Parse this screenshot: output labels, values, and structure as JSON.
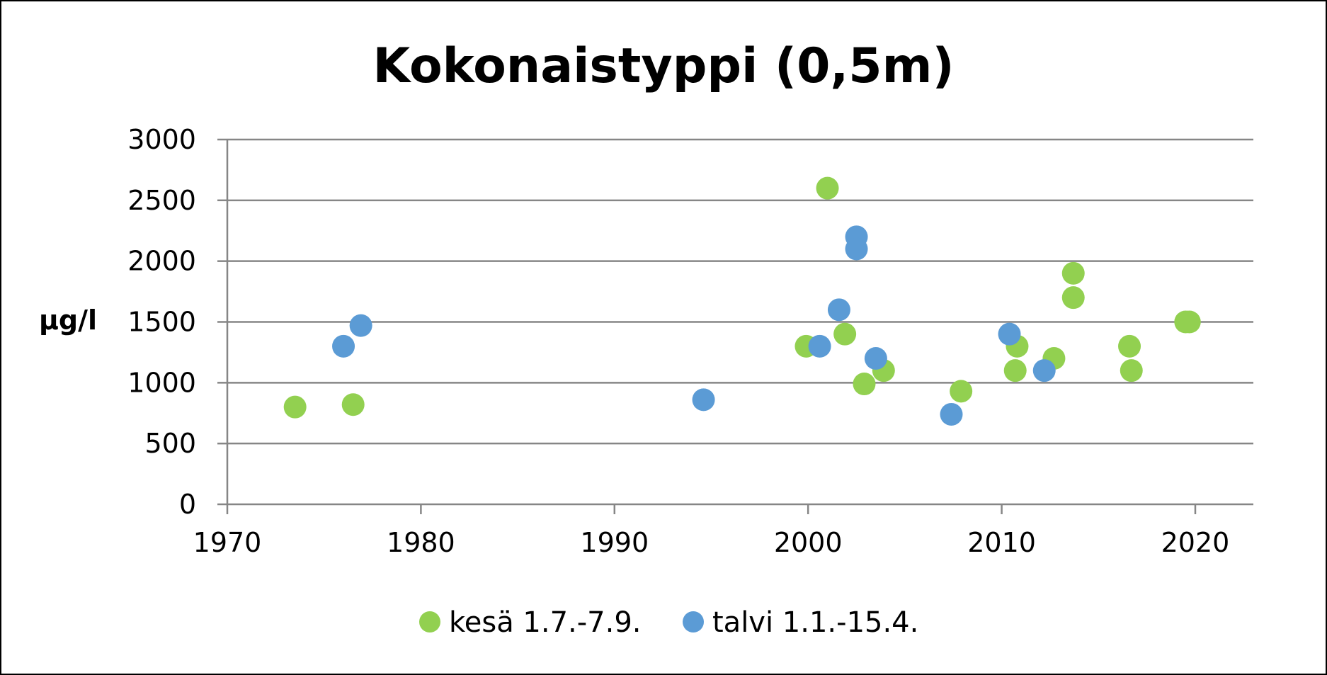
{
  "chart_data": {
    "type": "scatter",
    "title": "Kokonaistyppi (0,5m)",
    "xlabel": "",
    "ylabel": "µg/l",
    "xlim": [
      1970,
      2023
    ],
    "ylim": [
      0,
      3000
    ],
    "x_ticks": [
      1970,
      1980,
      1990,
      2000,
      2010,
      2020
    ],
    "y_ticks": [
      0,
      500,
      1000,
      1500,
      2000,
      2500,
      3000
    ],
    "grid": "horizontal",
    "legend_position": "bottom",
    "series": [
      {
        "name": "kesä 1.7.-7.9.",
        "color": "#92d050",
        "points": [
          {
            "x": 1973.5,
            "y": 800
          },
          {
            "x": 1976.5,
            "y": 820
          },
          {
            "x": 1999.9,
            "y": 1300
          },
          {
            "x": 2001.0,
            "y": 2600
          },
          {
            "x": 2001.9,
            "y": 1400
          },
          {
            "x": 2002.9,
            "y": 990
          },
          {
            "x": 2003.9,
            "y": 1100
          },
          {
            "x": 2007.9,
            "y": 930
          },
          {
            "x": 2010.8,
            "y": 1300
          },
          {
            "x": 2010.7,
            "y": 1100
          },
          {
            "x": 2012.7,
            "y": 1200
          },
          {
            "x": 2013.7,
            "y": 1900
          },
          {
            "x": 2013.7,
            "y": 1700
          },
          {
            "x": 2016.6,
            "y": 1300
          },
          {
            "x": 2016.7,
            "y": 1100
          },
          {
            "x": 2019.5,
            "y": 1500
          },
          {
            "x": 2019.7,
            "y": 1500
          }
        ]
      },
      {
        "name": "talvi 1.1.-15.4.",
        "color": "#5b9bd5",
        "points": [
          {
            "x": 1976.0,
            "y": 1300
          },
          {
            "x": 1976.9,
            "y": 1470
          },
          {
            "x": 1994.6,
            "y": 860
          },
          {
            "x": 2000.6,
            "y": 1300
          },
          {
            "x": 2001.6,
            "y": 1600
          },
          {
            "x": 2002.5,
            "y": 2200
          },
          {
            "x": 2002.5,
            "y": 2100
          },
          {
            "x": 2003.5,
            "y": 1200
          },
          {
            "x": 2007.4,
            "y": 740
          },
          {
            "x": 2010.4,
            "y": 1400
          },
          {
            "x": 2012.2,
            "y": 1100
          }
        ]
      }
    ]
  },
  "colors": {
    "gridline": "#868686",
    "axis": "#868686",
    "text": "#000000",
    "border": "#000000"
  }
}
